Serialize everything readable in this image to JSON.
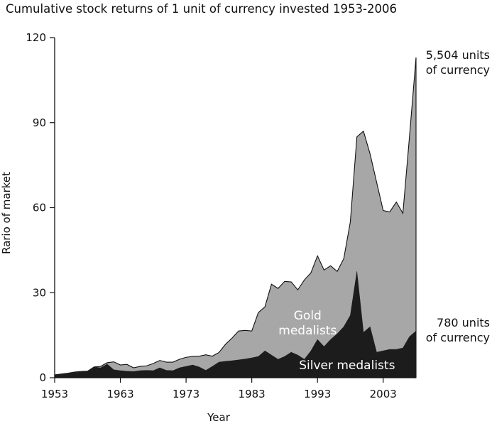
{
  "chart_data": {
    "type": "area",
    "title": "Cumulative stock returns of 1 unit of currency invested 1953-2006",
    "xlabel": "Year",
    "ylabel": "Rario of market",
    "xlim": [
      1953,
      2008
    ],
    "ylim": [
      0,
      120
    ],
    "x_ticks": [
      1953,
      1963,
      1973,
      1983,
      1993,
      2003
    ],
    "x_tick_labels": [
      "1953",
      "1963",
      "1973",
      "1983",
      "1993",
      "2003"
    ],
    "y_ticks": [
      0,
      30,
      60,
      90,
      120
    ],
    "y_tick_labels": [
      "0",
      "30",
      "60",
      "90",
      "120"
    ],
    "grid": false,
    "series": [
      {
        "name": "Gold medalists",
        "color": "#a7a7a7",
        "x": [
          1953,
          1954,
          1955,
          1956,
          1957,
          1958,
          1959,
          1960,
          1961,
          1962,
          1963,
          1964,
          1965,
          1966,
          1967,
          1968,
          1969,
          1970,
          1971,
          1972,
          1973,
          1974,
          1975,
          1976,
          1977,
          1978,
          1979,
          1980,
          1981,
          1982,
          1983,
          1984,
          1985,
          1986,
          1987,
          1988,
          1989,
          1990,
          1991,
          1992,
          1993,
          1994,
          1995,
          1996,
          1997,
          1998,
          1999,
          2000,
          2001,
          2002,
          2003,
          2004,
          2005,
          2006,
          2007,
          2008
        ],
        "values": [
          1.0,
          1.3,
          1.6,
          2.0,
          2.2,
          2.3,
          3.8,
          4.0,
          5.3,
          5.6,
          4.5,
          4.7,
          3.5,
          4.0,
          4.2,
          5.0,
          6.1,
          5.5,
          5.5,
          6.5,
          7.2,
          7.5,
          7.6,
          8.1,
          7.6,
          8.9,
          11.8,
          14.0,
          16.5,
          16.7,
          16.5,
          23.0,
          25.0,
          33.0,
          31.5,
          34.0,
          33.8,
          31.0,
          34.5,
          37.0,
          43.0,
          38.0,
          39.5,
          37.5,
          42.0,
          55.0,
          85.0,
          87.0,
          79.0,
          69.0,
          59.0,
          58.5,
          62.0,
          58.0,
          85.0,
          113.0
        ]
      },
      {
        "name": "Silver medalists",
        "color": "#1c1c1c",
        "x": [
          1953,
          1954,
          1955,
          1956,
          1957,
          1958,
          1959,
          1960,
          1961,
          1962,
          1963,
          1964,
          1965,
          1966,
          1967,
          1968,
          1969,
          1970,
          1971,
          1972,
          1973,
          1974,
          1975,
          1976,
          1977,
          1978,
          1979,
          1980,
          1981,
          1982,
          1983,
          1984,
          1985,
          1986,
          1987,
          1988,
          1989,
          1990,
          1991,
          1992,
          1993,
          1994,
          1995,
          1996,
          1997,
          1998,
          1999,
          2000,
          2001,
          2002,
          2003,
          2004,
          2005,
          2006,
          2007,
          2008
        ],
        "values": [
          1.0,
          1.3,
          1.5,
          1.8,
          2.0,
          2.3,
          3.8,
          3.5,
          4.8,
          2.8,
          2.5,
          2.3,
          2.2,
          2.5,
          2.6,
          2.5,
          3.5,
          2.6,
          2.5,
          3.5,
          4.0,
          4.5,
          3.8,
          2.6,
          4.0,
          5.5,
          5.8,
          6.0,
          6.3,
          6.6,
          7.0,
          7.5,
          9.5,
          8.0,
          6.5,
          7.5,
          9.0,
          8.0,
          6.5,
          9.5,
          13.5,
          11.0,
          13.5,
          15.5,
          18.0,
          22.0,
          37.5,
          16.0,
          18.0,
          9.0,
          9.5,
          10.0,
          10.0,
          10.5,
          14.5,
          16.5
        ]
      }
    ],
    "series_labels": [
      {
        "series": "Gold medalists",
        "lines": [
          "Gold",
          "medalists"
        ]
      },
      {
        "series": "Silver medalists",
        "lines": [
          "Silver medalists"
        ]
      }
    ],
    "annotations": [
      {
        "lines": [
          "5,504 units",
          "of currency"
        ],
        "for_series": "Gold medalists"
      },
      {
        "lines": [
          "780 units",
          "of currency"
        ],
        "for_series": "Silver medalists"
      }
    ],
    "legend": "none"
  }
}
